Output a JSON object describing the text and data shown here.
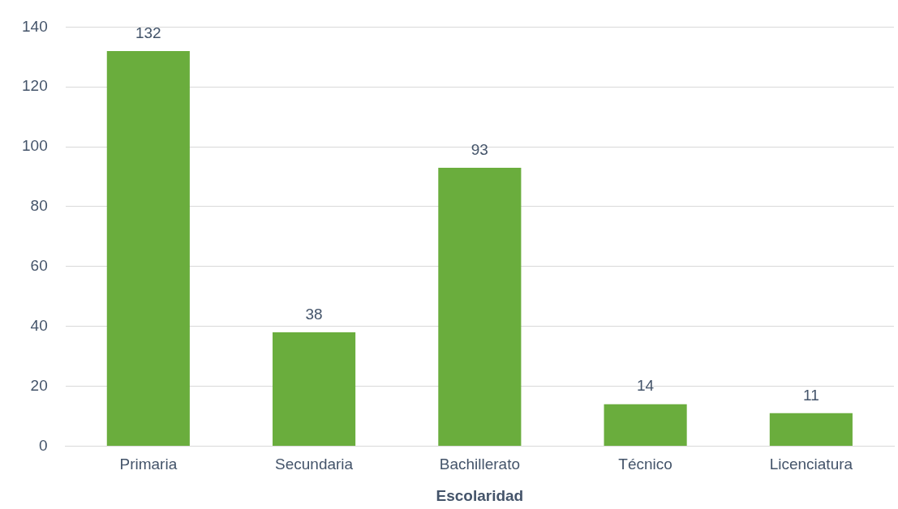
{
  "chart_data": {
    "type": "bar",
    "xlabel": "Escolaridad",
    "categories": [
      "Primaria",
      "Secundaria",
      "Bachillerato",
      "Técnico",
      "Licenciatura"
    ],
    "values": [
      132,
      38,
      93,
      14,
      11
    ],
    "color": "#6aad3d",
    "ylim": [
      0,
      140
    ],
    "yticks": [
      0,
      20,
      40,
      60,
      80,
      100,
      120,
      140
    ],
    "grid": "y",
    "data_labels": true,
    "legend": false
  }
}
